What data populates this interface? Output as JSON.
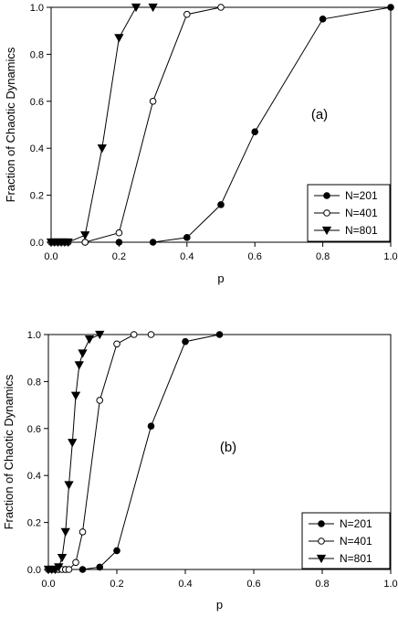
{
  "chart_data": [
    {
      "type": "line",
      "panel_label": "(a)",
      "xlabel": "p",
      "ylabel": "Fraction of Chaotic Dynamics",
      "xlim": [
        0.0,
        1.0
      ],
      "ylim": [
        0.0,
        1.0
      ],
      "x_ticks": [
        "0.0",
        "0.2",
        "0.4",
        "0.6",
        "0.8",
        "1.0"
      ],
      "y_ticks": [
        "0.0",
        "0.2",
        "0.4",
        "0.6",
        "0.8",
        "1.0"
      ],
      "grid": false,
      "legend_position": "bottom-right",
      "series": [
        {
          "name": "N=201",
          "marker": "filled-circle",
          "x": [
            0.0,
            0.01,
            0.02,
            0.03,
            0.04,
            0.05,
            0.1,
            0.2,
            0.3,
            0.4,
            0.5,
            0.6,
            0.8,
            1.0
          ],
          "y": [
            0.0,
            0.0,
            0.0,
            0.0,
            0.0,
            0.0,
            0.0,
            0.0,
            0.0,
            0.02,
            0.16,
            0.47,
            0.95,
            1.0
          ]
        },
        {
          "name": "N=401",
          "marker": "open-circle",
          "x": [
            0.0,
            0.01,
            0.02,
            0.03,
            0.04,
            0.05,
            0.1,
            0.2,
            0.3,
            0.4,
            0.5
          ],
          "y": [
            0.0,
            0.0,
            0.0,
            0.0,
            0.0,
            0.0,
            0.0,
            0.04,
            0.6,
            0.97,
            1.0
          ]
        },
        {
          "name": "N=801",
          "marker": "filled-triangle-down",
          "x": [
            0.0,
            0.01,
            0.02,
            0.03,
            0.04,
            0.05,
            0.1,
            0.2,
            0.15,
            0.25,
            0.3
          ],
          "y": [
            0.0,
            0.0,
            0.0,
            0.0,
            0.0,
            0.0,
            0.03,
            0.87,
            0.4,
            1.0,
            1.0
          ]
        }
      ]
    },
    {
      "type": "line",
      "panel_label": "(b)",
      "xlabel": "p",
      "ylabel": "Fraction of Chaotic Dynamics",
      "xlim": [
        0.0,
        1.0
      ],
      "ylim": [
        0.0,
        1.0
      ],
      "x_ticks": [
        "0.0",
        "0.2",
        "0.4",
        "0.6",
        "0.8",
        "1.0"
      ],
      "y_ticks": [
        "0.0",
        "0.2",
        "0.4",
        "0.6",
        "0.8",
        "1.0"
      ],
      "grid": false,
      "legend_position": "bottom-right",
      "series": [
        {
          "name": "N=201",
          "marker": "filled-circle",
          "x": [
            0.0,
            0.01,
            0.02,
            0.03,
            0.05,
            0.1,
            0.15,
            0.2,
            0.3,
            0.4,
            0.5
          ],
          "y": [
            0.0,
            0.0,
            0.0,
            0.0,
            0.0,
            0.0,
            0.01,
            0.08,
            0.61,
            0.97,
            1.0
          ]
        },
        {
          "name": "N=401",
          "marker": "open-circle",
          "x": [
            0.0,
            0.01,
            0.02,
            0.03,
            0.04,
            0.05,
            0.06,
            0.08,
            0.1,
            0.15,
            0.2,
            0.25,
            0.3
          ],
          "y": [
            0.0,
            0.0,
            0.0,
            0.0,
            0.0,
            0.0,
            0.0,
            0.03,
            0.16,
            0.72,
            0.96,
            1.0,
            1.0
          ]
        },
        {
          "name": "N=801",
          "marker": "filled-triangle-down",
          "x": [
            0.0,
            0.01,
            0.02,
            0.03,
            0.04,
            0.05,
            0.06,
            0.07,
            0.08,
            0.09,
            0.1,
            0.12,
            0.15
          ],
          "y": [
            0.0,
            0.0,
            0.0,
            0.01,
            0.05,
            0.16,
            0.36,
            0.54,
            0.74,
            0.87,
            0.92,
            0.98,
            1.0
          ]
        }
      ]
    }
  ]
}
